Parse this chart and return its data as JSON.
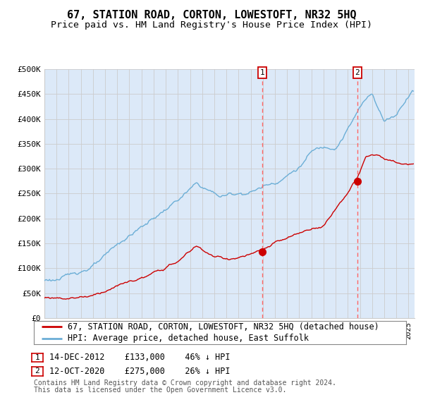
{
  "title": "67, STATION ROAD, CORTON, LOWESTOFT, NR32 5HQ",
  "subtitle": "Price paid vs. HM Land Registry's House Price Index (HPI)",
  "legend_line1": "67, STATION ROAD, CORTON, LOWESTOFT, NR32 5HQ (detached house)",
  "legend_line2": "HPI: Average price, detached house, East Suffolk",
  "footnote1": "Contains HM Land Registry data © Crown copyright and database right 2024.",
  "footnote2": "This data is licensed under the Open Government Licence v3.0.",
  "annotation1_date": "14-DEC-2012",
  "annotation1_price": "£133,000",
  "annotation1_hpi": "46% ↓ HPI",
  "annotation2_date": "12-OCT-2020",
  "annotation2_price": "£275,000",
  "annotation2_hpi": "26% ↓ HPI",
  "xmin": 1995.0,
  "xmax": 2025.5,
  "ymin": 0,
  "ymax": 500000,
  "yticks": [
    0,
    50000,
    100000,
    150000,
    200000,
    250000,
    300000,
    350000,
    400000,
    450000,
    500000
  ],
  "ytick_labels": [
    "£0",
    "£50K",
    "£100K",
    "£150K",
    "£200K",
    "£250K",
    "£300K",
    "£350K",
    "£400K",
    "£450K",
    "£500K"
  ],
  "grid_color": "#cccccc",
  "bg_color": "#dce9f8",
  "hpi_line_color": "#6baed6",
  "price_line_color": "#cc0000",
  "dot_color": "#cc0000",
  "vline_color": "#ff6666",
  "marker1_x": 2012.958,
  "marker1_y": 133000,
  "marker2_x": 2020.792,
  "marker2_y": 275000,
  "title_fontsize": 11,
  "subtitle_fontsize": 9.5,
  "tick_fontsize": 8,
  "annot_fontsize": 8.5,
  "legend_fontsize": 8.5,
  "footnote_fontsize": 7
}
